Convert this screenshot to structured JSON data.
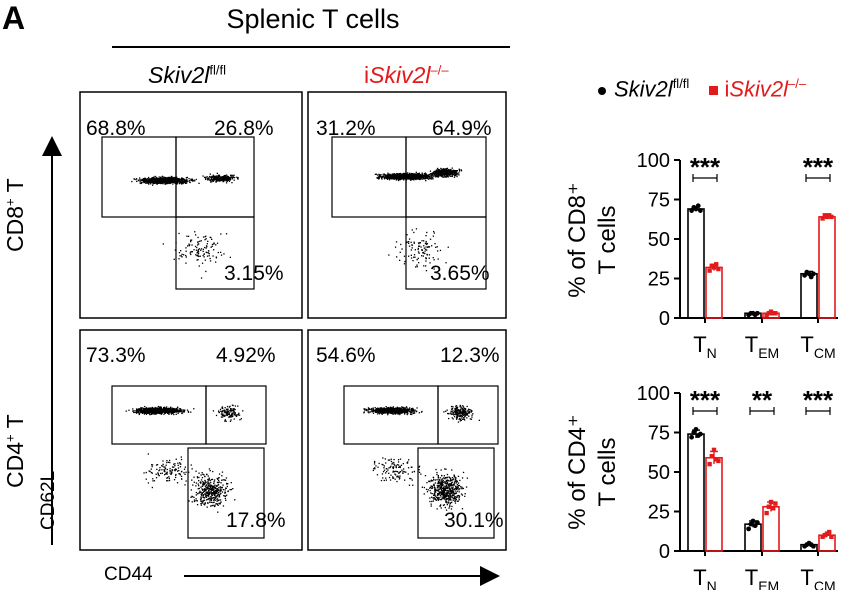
{
  "panel_letter": "A",
  "figure_title": "Splenic T cells",
  "genotypes": {
    "control": {
      "italic": "Skiv2l",
      "sup": "fl/fl"
    },
    "ko": {
      "prefix": "i",
      "italic": "Skiv2l",
      "sup": "–/–"
    }
  },
  "rows": {
    "cd8": {
      "main": "CD8",
      "sup": "+",
      "suffix": " T"
    },
    "cd4": {
      "main": "CD4",
      "sup": "+",
      "suffix": " T"
    }
  },
  "axes": {
    "y": "CD62L",
    "x": "CD44"
  },
  "colors": {
    "control": "#000000",
    "ko": "#e31a1c"
  },
  "flow": {
    "cd8_control": {
      "tl": "68.8%",
      "tr": "26.8%",
      "br": "3.15%"
    },
    "cd8_ko": {
      "tl": "31.2%",
      "tr": "64.9%",
      "br": "3.65%"
    },
    "cd4_control": {
      "tl": "73.3%",
      "tr": "4.92%",
      "br": "17.8%"
    },
    "cd4_ko": {
      "tl": "54.6%",
      "tr": "12.3%",
      "br": "30.1%"
    }
  },
  "chart_data": [
    {
      "type": "bar",
      "ylabel_lines": [
        "% of CD8⁺",
        "T cells"
      ],
      "categories": [
        {
          "main": "T",
          "sub": "N"
        },
        {
          "main": "T",
          "sub": "EM"
        },
        {
          "main": "T",
          "sub": "CM"
        }
      ],
      "ylim": [
        0,
        100
      ],
      "yticks": [
        0,
        25,
        50,
        75,
        100
      ],
      "series": [
        {
          "group": "control",
          "values": [
            69,
            3,
            28
          ],
          "errors": [
            1.5,
            0.5,
            1.5
          ],
          "points": [
            [
              68,
              70,
              69,
              71,
              68
            ],
            [
              2,
              3,
              3,
              2,
              3
            ],
            [
              27,
              29,
              28,
              26,
              28
            ]
          ]
        },
        {
          "group": "ko",
          "values": [
            32,
            3,
            64
          ],
          "errors": [
            2,
            0.5,
            1
          ],
          "points": [
            [
              30,
              33,
              32,
              34,
              31
            ],
            [
              2,
              3,
              4,
              3,
              3
            ],
            [
              63,
              65,
              64,
              65,
              64
            ]
          ]
        }
      ],
      "significance": [
        "***",
        "",
        "***"
      ]
    },
    {
      "type": "bar",
      "ylabel_lines": [
        "% of CD4⁺",
        "T cells"
      ],
      "categories": [
        {
          "main": "T",
          "sub": "N"
        },
        {
          "main": "T",
          "sub": "EM"
        },
        {
          "main": "T",
          "sub": "CM"
        }
      ],
      "ylim": [
        0,
        100
      ],
      "yticks": [
        0,
        25,
        50,
        75,
        100
      ],
      "series": [
        {
          "group": "control",
          "values": [
            74,
            17,
            4
          ],
          "errors": [
            2.5,
            2,
            0.7
          ],
          "points": [
            [
              72,
              75,
              77,
              73,
              74
            ],
            [
              14,
              17,
              19,
              16,
              18
            ],
            [
              3,
              4,
              5,
              4,
              3
            ]
          ]
        },
        {
          "group": "ko",
          "values": [
            59,
            28,
            10
          ],
          "errors": [
            4,
            3,
            1
          ],
          "points": [
            [
              55,
              60,
              64,
              58,
              57
            ],
            [
              24,
              28,
              31,
              27,
              30
            ],
            [
              9,
              10,
              11,
              12,
              9
            ]
          ]
        }
      ],
      "significance": [
        "***",
        "**",
        "***"
      ]
    }
  ]
}
